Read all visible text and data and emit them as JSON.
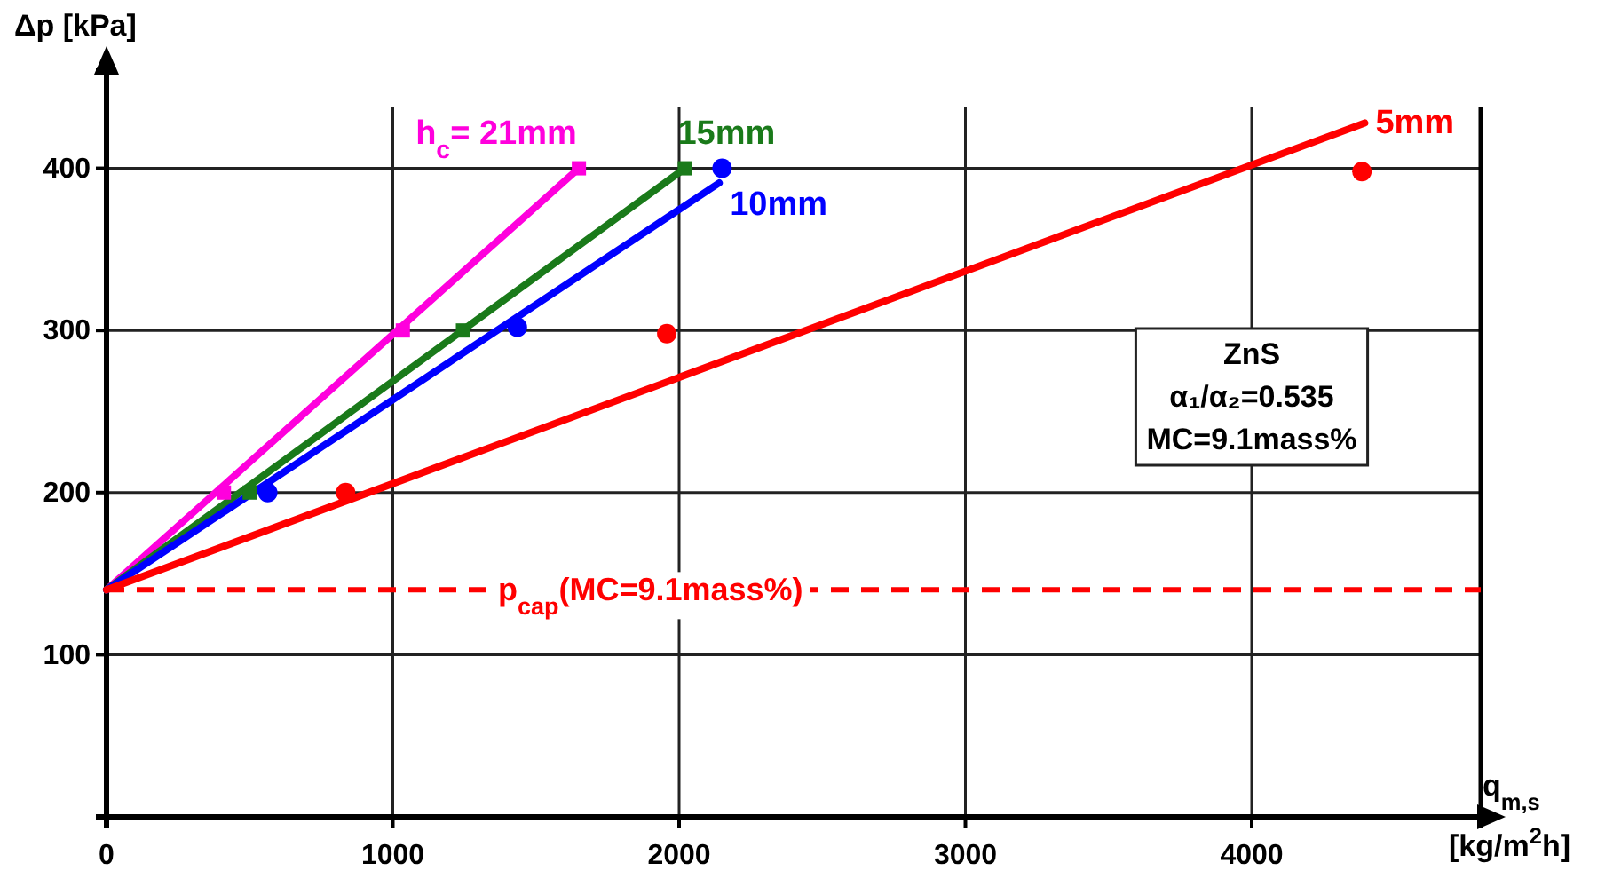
{
  "chart_data": {
    "type": "line",
    "xlabel": "q$_{m,s}$ [kg/m$^{2}$h]",
    "ylabel": "Δp [kPa]",
    "xlim": [
      0,
      4800
    ],
    "ylim": [
      0,
      460
    ],
    "xticks": [
      0,
      1000,
      2000,
      3000,
      4000
    ],
    "yticks": [
      100,
      200,
      300,
      400
    ],
    "grid": true,
    "series": [
      {
        "name": "h$_{c}$= 21mm",
        "color": "#ff00dd",
        "x": [
          0,
          1650
        ],
        "values": [
          140,
          400
        ]
      },
      {
        "type": "scatter",
        "color": "#ff00dd",
        "marker": "square",
        "x": [
          410,
          1035,
          1650
        ],
        "values": [
          200,
          300,
          400
        ]
      },
      {
        "name": "15mm",
        "color": "#1a7a1a",
        "x": [
          0,
          2020
        ],
        "values": [
          140,
          400
        ]
      },
      {
        "type": "scatter",
        "color": "#1a7a1a",
        "marker": "square",
        "x": [
          500,
          1245,
          2020
        ],
        "values": [
          200,
          300,
          400
        ]
      },
      {
        "name": "10mm",
        "color": "#0000ff",
        "x": [
          0,
          2140
        ],
        "values": [
          140,
          391
        ]
      },
      {
        "type": "scatter",
        "color": "#0000ff",
        "marker": "circle",
        "x": [
          563,
          1435,
          2150
        ],
        "values": [
          200,
          302,
          400
        ]
      },
      {
        "name": "5mm",
        "color": "#ff0000",
        "x": [
          0,
          4395
        ],
        "values": [
          140,
          428
        ]
      },
      {
        "type": "scatter",
        "color": "#ff0000",
        "marker": "circle",
        "x": [
          835,
          1957,
          4385
        ],
        "values": [
          200,
          298,
          398
        ]
      }
    ],
    "ref_lines": [
      {
        "axis": "y",
        "value": 140,
        "color": "#ff0000",
        "line_style": "dashed"
      }
    ],
    "annotations": [
      {
        "text": "p$_{cap}$(MC=9.1mass%)",
        "x": 1900,
        "y": 140
      },
      "ZnS",
      "α₁/α₂=0.535",
      "MC=9.1mass%"
    ]
  }
}
